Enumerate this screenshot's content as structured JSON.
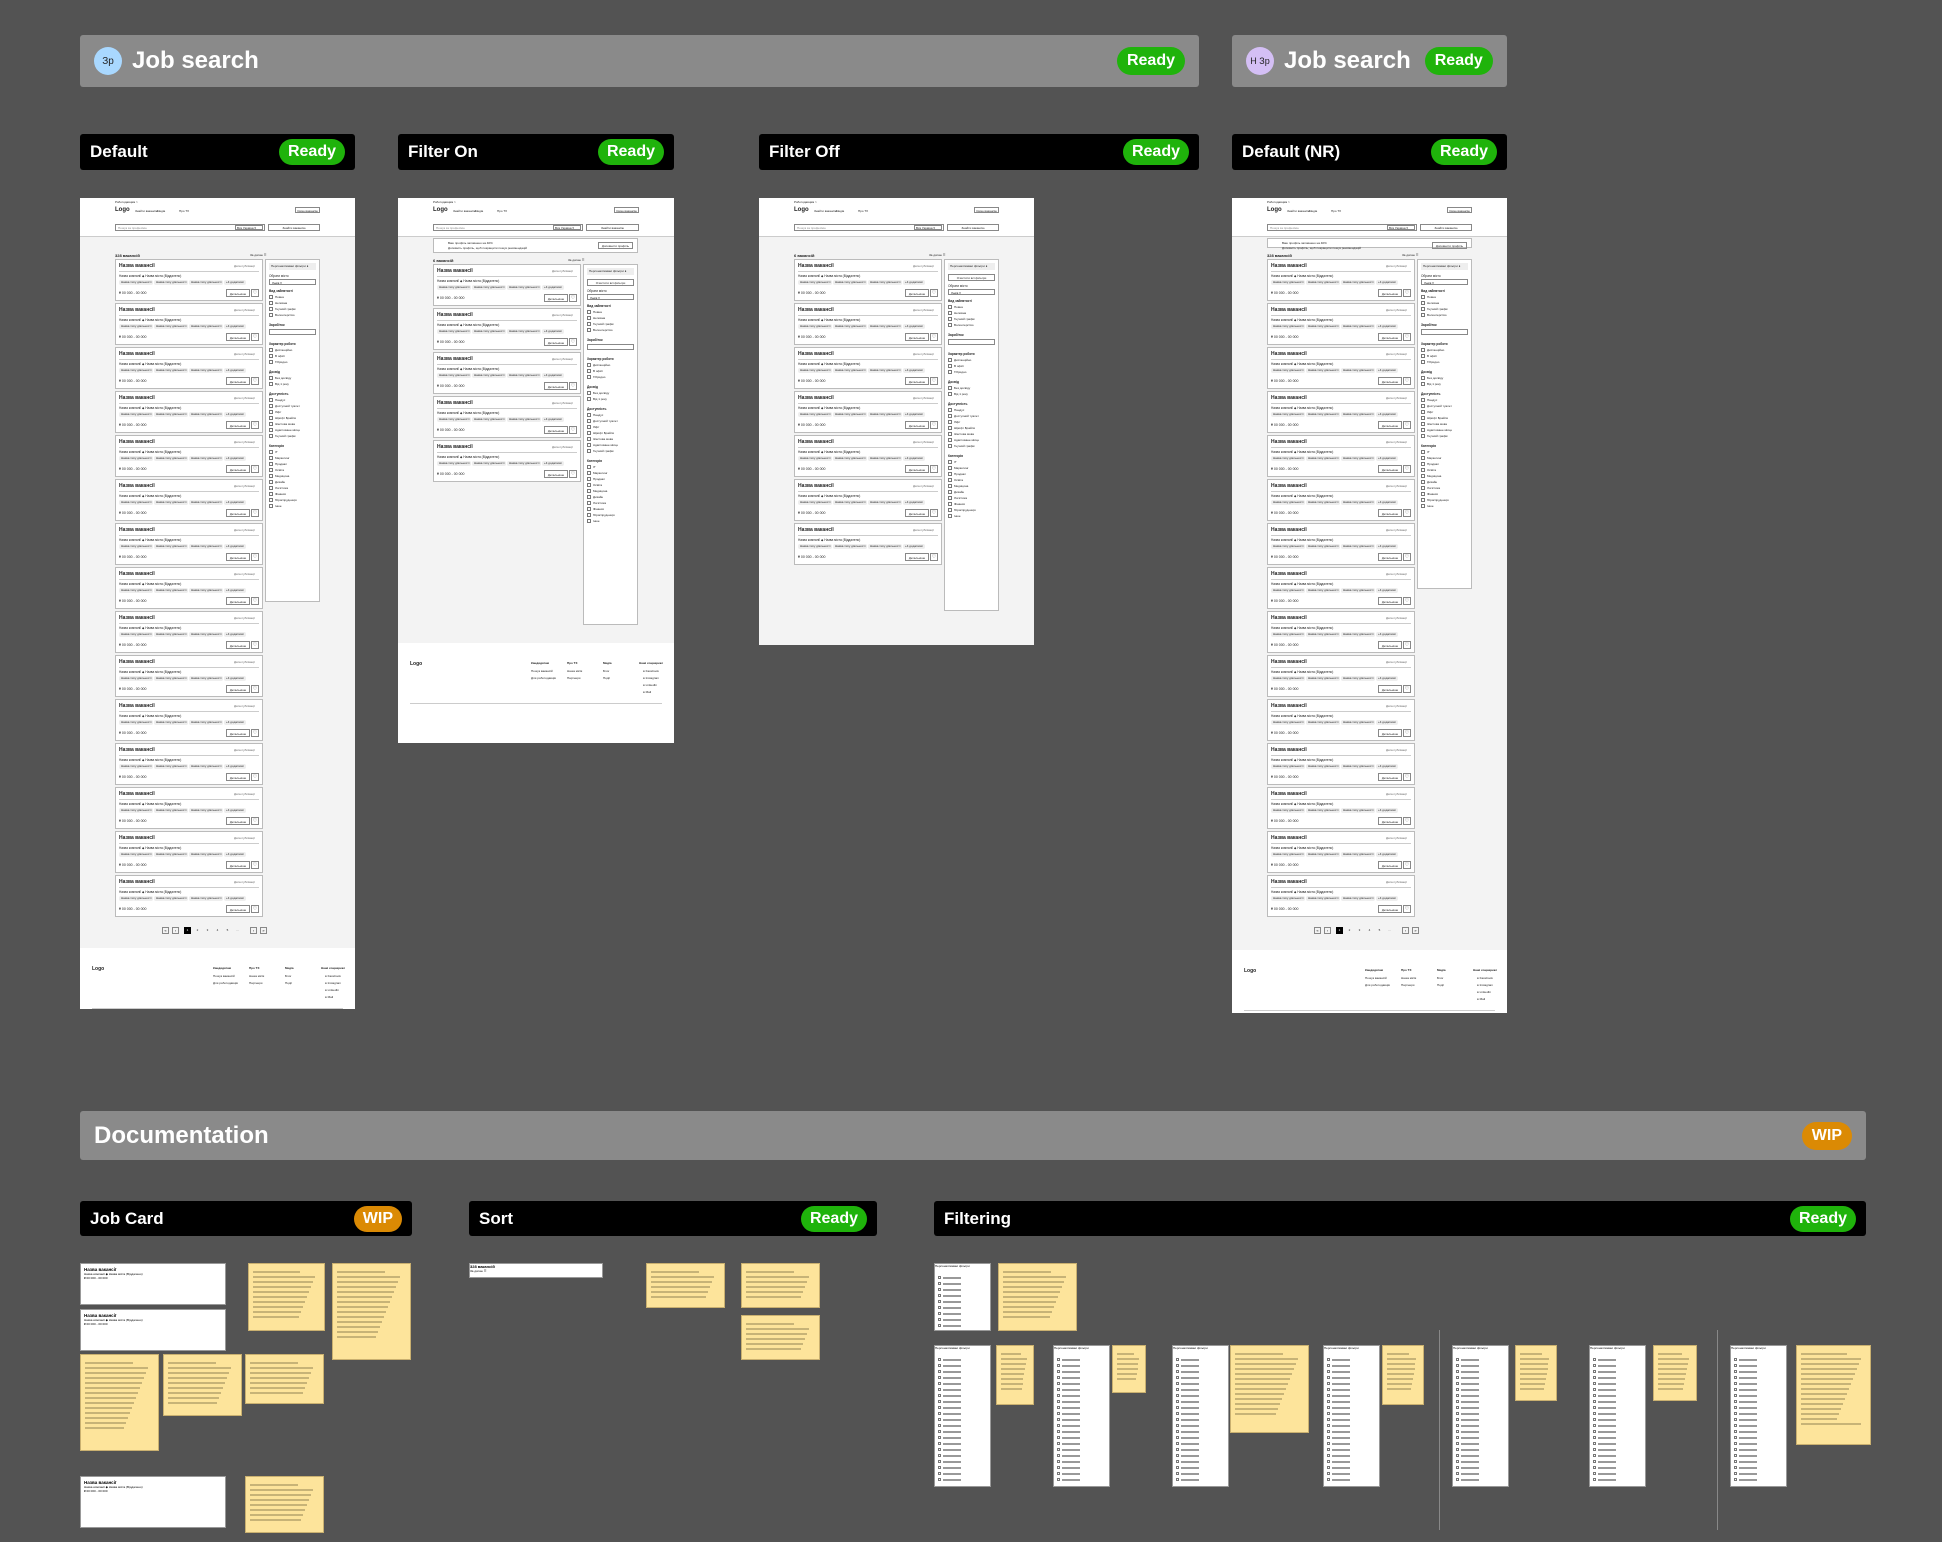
{
  "colors": {
    "ready": "#1fb30b",
    "wip": "#db8a04",
    "canvas": "#535353",
    "sticky": "#fde49b"
  },
  "sections": {
    "job_search_main": {
      "avatar": "Зр",
      "title": "Job search",
      "status": "Ready"
    },
    "job_search_nr": {
      "avatar": "Н Зр",
      "title": "Job search",
      "status": "Ready"
    },
    "documentation": {
      "title": "Documentation",
      "status": "WIP"
    }
  },
  "frames": [
    {
      "label": "Default",
      "status": "Ready"
    },
    {
      "label": "Filter On",
      "status": "Ready"
    },
    {
      "label": "Filter Off",
      "status": "Ready"
    },
    {
      "label": "Default (NR)",
      "status": "Ready"
    }
  ],
  "docs": [
    {
      "label": "Job Card",
      "status": "WIP"
    },
    {
      "label": "Sort",
      "status": "Ready"
    },
    {
      "label": "Filtering",
      "status": "Ready"
    }
  ],
  "wireframe": {
    "breadcrumb": "Роботодавцям >",
    "logo": "Logo",
    "nav": [
      "Знайти вакансію",
      "Медіа",
      "Про ТХ"
    ],
    "post_button": "Свою вакансію",
    "search_placeholder": "Пошук за професією",
    "region": "Вся Україна",
    "find_button": "Знайти вакансію",
    "count_default": "328 вакансій",
    "count_filtered": "6 вакансій",
    "sort": "За датою",
    "banner_title": "Ваш профіль заповнено на 40%",
    "banner_text": "Доповніть профіль, щоб покращити пошук рекомендацій",
    "banner_button": "Доповнити профіль",
    "card": {
      "title": "Назва вакансії",
      "date": "Дата публікації",
      "company": "Назва компанії",
      "city": "Назва міста (Віддалено)",
      "tags": [
        "Назва типу діяльності",
        "Назва типу діяльності",
        "Назва типу діяльності",
        "+4 додаткові"
      ],
      "salary": "₴ 00 000 - 00 000",
      "details": "Детальніше"
    },
    "filters": {
      "personal": "Персоналізовані фільтри",
      "reset": "Очистити всі фільтри",
      "city_label": "Обрати місто",
      "city_value": "Львів",
      "groups": [
        {
          "title": "Вид зайнятості",
          "items": [
            "Повна",
            "Неповна",
            "Гнучкий графік",
            "Волонтерство"
          ]
        },
        {
          "title": "Заробіток",
          "items": []
        },
        {
          "title": "Характер роботи",
          "items": [
            "Дистанційно",
            "В офісі",
            "Гібридно"
          ]
        },
        {
          "title": "Досвід",
          "items": [
            "Без досвіду",
            "Від 1 року"
          ]
        },
        {
          "title": "Доступність",
          "items": [
            "Пандус",
            "Доступний туалет",
            "Ліфт",
            "Шрифт Брайля",
            "Жестова мова",
            "Адаптоване місце",
            "Гнучкий графік"
          ]
        },
        {
          "title": "Категорія",
          "items": [
            "IT",
            "Маркетинг",
            "Продажі",
            "Освіта",
            "Медицина",
            "Дизайн",
            "Логістика",
            "Фінанси",
            "Юриспруденція",
            "Інше"
          ]
        }
      ]
    },
    "pagination": [
      "1",
      "2",
      "3",
      "4",
      "5",
      "..."
    ],
    "footer": {
      "logo": "Logo",
      "cols": [
        {
          "title": "Кандидатам",
          "items": [
            "Пошук вакансій",
            "Для роботодавців"
          ]
        },
        {
          "title": "Про ТХ",
          "items": [
            "Наша місія",
            "Партнери"
          ]
        },
        {
          "title": "Медіа",
          "items": [
            "Блог",
            "Події"
          ]
        },
        {
          "title": "Наші соцмережі",
          "items": [
            "Facebook",
            "Instagram",
            "LinkedIn",
            "Mail"
          ]
        }
      ]
    }
  }
}
